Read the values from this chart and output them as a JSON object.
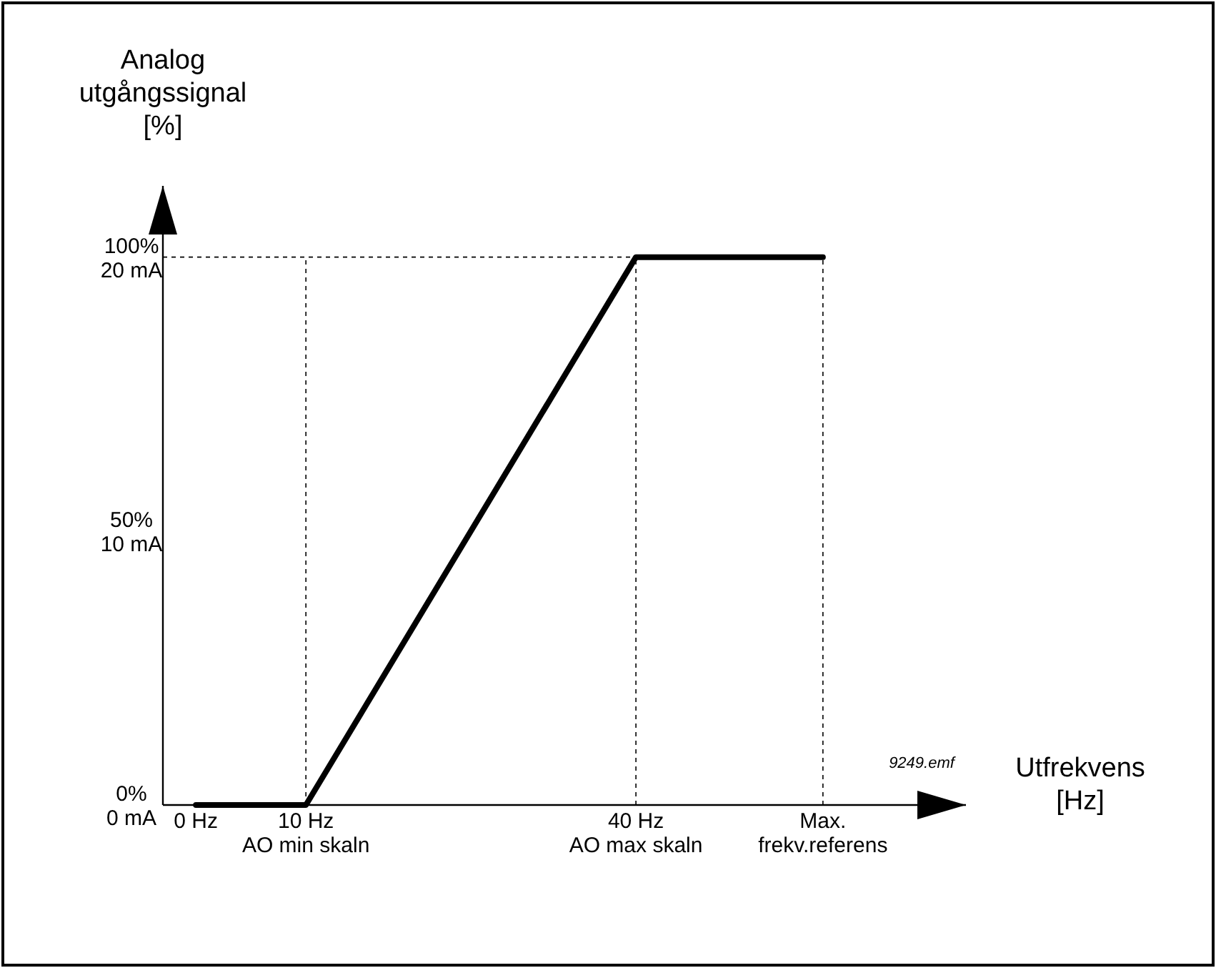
{
  "chart_data": {
    "type": "line",
    "xlabel": "Utfrekvens\n[Hz]",
    "ylabel": "Analog\nutgångssignal\n[%]",
    "x": [
      0,
      10,
      40,
      57
    ],
    "series": [
      {
        "color": "#000000",
        "values": [
          0,
          0,
          100,
          100
        ]
      }
    ],
    "xlim": [
      -3,
      70
    ],
    "xticks": [
      {
        "value": 0,
        "label": "0 Hz"
      },
      {
        "value": 10,
        "label": "10 Hz\nAO min skaln"
      },
      {
        "value": 40,
        "label": "40 Hz\nAO max skaln"
      },
      {
        "value": 57,
        "label": "Max.\nfrekv.referens"
      }
    ],
    "ylim": [
      0,
      113
    ],
    "yticks": [
      {
        "value": 0,
        "label": "0%"
      },
      {
        "value": 50,
        "label": "50%"
      },
      {
        "value": 100,
        "label": "100%"
      }
    ],
    "y2lim": [
      0,
      22.6
    ],
    "y2ticks": [
      {
        "value": 0,
        "label": "0 mA"
      },
      {
        "value": 10,
        "label": "10 mA"
      },
      {
        "value": 20,
        "label": "20 mA"
      }
    ],
    "ref_lines": [
      {
        "axis": "x",
        "value": 10,
        "line_style": "dashed",
        "color": "#000000"
      },
      {
        "axis": "x",
        "value": 40,
        "line_style": "dashed",
        "color": "#000000"
      },
      {
        "axis": "x",
        "value": 57,
        "line_style": "dashed",
        "color": "#000000"
      },
      {
        "axis": "y",
        "value": 100,
        "line_style": "dashed",
        "color": "#000000"
      }
    ],
    "annotations": [
      "9249.emf"
    ],
    "grid": false,
    "marker": "none",
    "line_style": "solid"
  }
}
